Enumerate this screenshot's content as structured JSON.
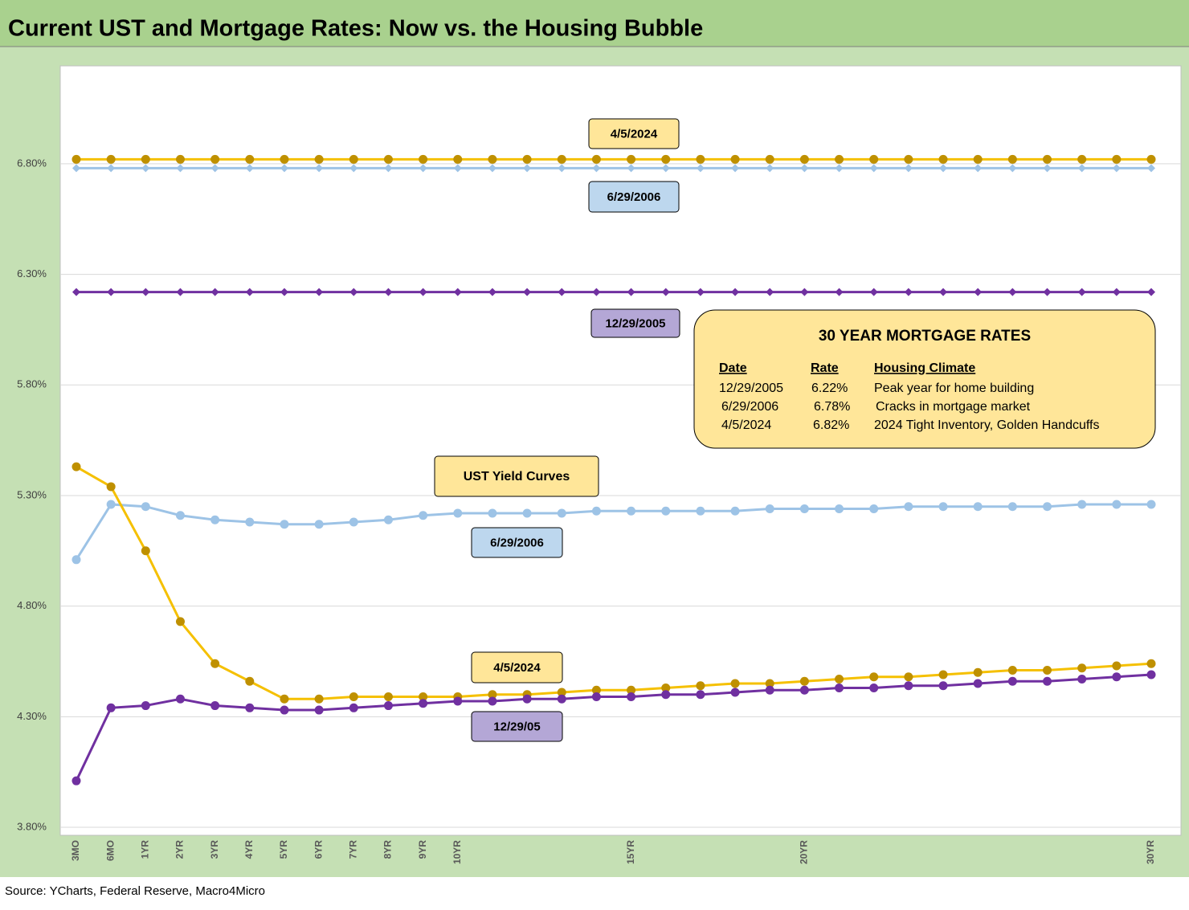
{
  "chart_data": {
    "type": "line",
    "title": "Current UST and Mortgage Rates: Now vs. the Housing Bubble",
    "source": "Source: YCharts, Federal Reserve, Macro4Micro",
    "categories": [
      "3MO",
      "6MO",
      "1YR",
      "2YR",
      "3YR",
      "4YR",
      "5YR",
      "6YR",
      "7YR",
      "8YR",
      "9YR",
      "10YR",
      null,
      null,
      null,
      null,
      "15YR",
      null,
      null,
      null,
      null,
      "20YR",
      null,
      null,
      null,
      null,
      null,
      null,
      null,
      null,
      null,
      "30YR"
    ],
    "ylim": [
      3.8,
      7.25
    ],
    "yticks": [
      {
        "value": 3.8,
        "label": "3.80%"
      },
      {
        "value": 4.3,
        "label": "4.30%"
      },
      {
        "value": 4.8,
        "label": "4.80%"
      },
      {
        "value": 5.3,
        "label": "5.30%"
      },
      {
        "value": 5.8,
        "label": "5.80%"
      },
      {
        "value": 6.3,
        "label": "6.30%"
      },
      {
        "value": 6.8,
        "label": "6.80%"
      }
    ],
    "grid": true,
    "annotations": [
      "UST Yield Curves"
    ],
    "series": [
      {
        "name": "4/5/2024",
        "color": "#f5c000",
        "marker_color": "#bf9000",
        "marker": "circle",
        "values": [
          6.82,
          6.82,
          6.82,
          6.82,
          6.82,
          6.82,
          6.82,
          6.82,
          6.82,
          6.82,
          6.82,
          6.82,
          6.82,
          6.82,
          6.82,
          6.82,
          6.82,
          6.82,
          6.82,
          6.82,
          6.82,
          6.82,
          6.82,
          6.82,
          6.82,
          6.82,
          6.82,
          6.82,
          6.82,
          6.82,
          6.82,
          6.82
        ]
      },
      {
        "name": "6/29/2006",
        "color": "#9dc3e6",
        "marker_color": "#9dc3e6",
        "marker": "diamond",
        "values": [
          6.78,
          6.78,
          6.78,
          6.78,
          6.78,
          6.78,
          6.78,
          6.78,
          6.78,
          6.78,
          6.78,
          6.78,
          6.78,
          6.78,
          6.78,
          6.78,
          6.78,
          6.78,
          6.78,
          6.78,
          6.78,
          6.78,
          6.78,
          6.78,
          6.78,
          6.78,
          6.78,
          6.78,
          6.78,
          6.78,
          6.78,
          6.78
        ]
      },
      {
        "name": "12/29/2005",
        "color": "#7030a0",
        "marker_color": "#7030a0",
        "marker": "diamond",
        "values": [
          6.22,
          6.22,
          6.22,
          6.22,
          6.22,
          6.22,
          6.22,
          6.22,
          6.22,
          6.22,
          6.22,
          6.22,
          6.22,
          6.22,
          6.22,
          6.22,
          6.22,
          6.22,
          6.22,
          6.22,
          6.22,
          6.22,
          6.22,
          6.22,
          6.22,
          6.22,
          6.22,
          6.22,
          6.22,
          6.22,
          6.22,
          6.22
        ]
      },
      {
        "name": "6/29/2006",
        "color": "#9dc3e6",
        "marker_color": "#9dc3e6",
        "marker": "circle",
        "values": [
          5.01,
          5.26,
          5.25,
          5.21,
          5.19,
          5.18,
          5.17,
          5.17,
          5.18,
          5.19,
          5.21,
          5.22,
          5.22,
          5.22,
          5.22,
          5.23,
          5.23,
          5.23,
          5.23,
          5.23,
          5.24,
          5.24,
          5.24,
          5.24,
          5.25,
          5.25,
          5.25,
          5.25,
          5.25,
          5.26,
          5.26,
          5.26
        ]
      },
      {
        "name": "4/5/2024",
        "color": "#f5c000",
        "marker_color": "#bf9000",
        "marker": "circle",
        "values": [
          5.43,
          5.34,
          5.05,
          4.73,
          4.54,
          4.46,
          4.38,
          4.38,
          4.39,
          4.39,
          4.39,
          4.39,
          4.4,
          4.4,
          4.41,
          4.42,
          4.42,
          4.43,
          4.44,
          4.45,
          4.45,
          4.46,
          4.47,
          4.48,
          4.48,
          4.49,
          4.5,
          4.51,
          4.51,
          4.52,
          4.53,
          4.54
        ]
      },
      {
        "name": "12/29/05",
        "color": "#7030a0",
        "marker_color": "#7030a0",
        "marker": "circle",
        "values": [
          4.01,
          4.34,
          4.35,
          4.38,
          4.35,
          4.34,
          4.33,
          4.33,
          4.34,
          4.35,
          4.36,
          4.37,
          4.37,
          4.38,
          4.38,
          4.39,
          4.39,
          4.4,
          4.4,
          4.41,
          4.42,
          4.42,
          4.43,
          4.43,
          4.44,
          4.44,
          4.45,
          4.46,
          4.46,
          4.47,
          4.48,
          4.49
        ]
      }
    ]
  },
  "table": {
    "title": "30 YEAR MORTGAGE RATES",
    "headers": [
      "Date",
      "Rate",
      "Housing Climate"
    ],
    "rows": [
      [
        "12/29/2005",
        "6.22%",
        "Peak year for home building"
      ],
      [
        "6/29/2006",
        "6.78%",
        "Cracks in mortgage market"
      ],
      [
        "4/5/2024",
        "6.82%",
        "2024 Tight Inventory, Golden Handcuffs"
      ]
    ]
  }
}
